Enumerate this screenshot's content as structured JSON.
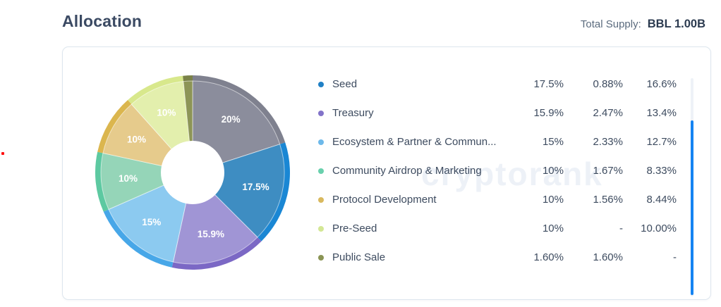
{
  "header": {
    "title": "Allocation",
    "total_supply_label": "Total Supply:",
    "total_supply_value": "BBL 1.00B"
  },
  "watermark": "cryptorank",
  "colors": {
    "scrollbar_track": "#eef2f7",
    "scrollbar_thumb": "#1583f2",
    "card_border": "#dde6ee",
    "legend_text": "#3d4b5f",
    "title_text": "#3b4a63"
  },
  "chart_data": {
    "type": "pie",
    "style": "donut",
    "unit": "%",
    "total": 100,
    "slices": [
      {
        "name": "",
        "value": 20,
        "label": "20%",
        "color": "#8b8d9c",
        "rim_color": "#7f818f"
      },
      {
        "name": "Seed",
        "value": 17.5,
        "label": "17.5%",
        "color": "#3e8dc2",
        "rim_color": "#1a87d4"
      },
      {
        "name": "Treasury",
        "value": 15.9,
        "label": "15.9%",
        "color": "#a095d5",
        "rim_color": "#7b68c5"
      },
      {
        "name": "Ecosystem & Partner & Commun...",
        "value": 15,
        "label": "15%",
        "color": "#8ccaf0",
        "rim_color": "#47a7e8"
      },
      {
        "name": "Community Airdrop & Marketing",
        "value": 10,
        "label": "10%",
        "color": "#95d5b8",
        "rim_color": "#5dc9a1"
      },
      {
        "name": "Protocol Development",
        "value": 10,
        "label": "10%",
        "color": "#e6cb8c",
        "rim_color": "#dbb64e"
      },
      {
        "name": "Pre-Seed",
        "value": 10,
        "label": "10%",
        "color": "#e3efad",
        "rim_color": "#d8e88c"
      },
      {
        "name": "Public Sale",
        "value": 1.6,
        "label": "",
        "color": "#8d9557",
        "rim_color": "#7a8248"
      }
    ]
  },
  "legend": {
    "rows": [
      {
        "name": "Seed",
        "dot_color": "#2080c5",
        "col1": "17.5%",
        "col2": "0.88%",
        "col3": "16.6%"
      },
      {
        "name": "Treasury",
        "dot_color": "#8273c9",
        "col1": "15.9%",
        "col2": "2.47%",
        "col3": "13.4%"
      },
      {
        "name": "Ecosystem & Partner & Commun...",
        "dot_color": "#6db9ea",
        "col1": "15%",
        "col2": "2.33%",
        "col3": "12.7%"
      },
      {
        "name": "Community Airdrop & Marketing",
        "dot_color": "#69d0ad",
        "col1": "10%",
        "col2": "1.67%",
        "col3": "8.33%"
      },
      {
        "name": "Protocol Development",
        "dot_color": "#d9b95e",
        "col1": "10%",
        "col2": "1.56%",
        "col3": "8.44%"
      },
      {
        "name": "Pre-Seed",
        "dot_color": "#d3e795",
        "col1": "10%",
        "col2": "-",
        "col3": "10.00%"
      },
      {
        "name": "Public Sale",
        "dot_color": "#8a9454",
        "col1": "1.60%",
        "col2": "1.60%",
        "col3": "-"
      }
    ]
  }
}
